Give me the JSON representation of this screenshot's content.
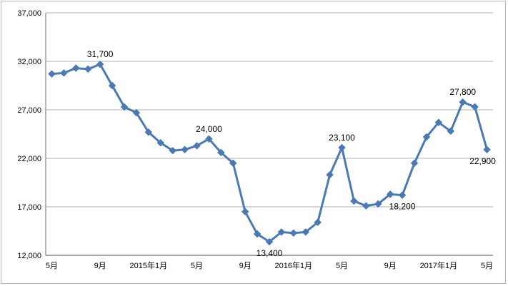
{
  "chart_data": {
    "type": "line",
    "title": "",
    "xlabel": "",
    "ylabel": "",
    "ylim": [
      12000,
      37000
    ],
    "yticks": [
      12000,
      17000,
      22000,
      27000,
      32000,
      37000
    ],
    "ytick_labels": [
      "12,000",
      "17,000",
      "22,000",
      "27,000",
      "32,000",
      "37,000"
    ],
    "grid": "horizontal",
    "legend": "none",
    "line_color": "#4a7ab3",
    "marker": "diamond",
    "x": [
      "2014-05",
      "2014-06",
      "2014-07",
      "2014-08",
      "2014-09",
      "2014-10",
      "2014-11",
      "2014-12",
      "2015-01",
      "2015-02",
      "2015-03",
      "2015-04",
      "2015-05",
      "2015-06",
      "2015-07",
      "2015-08",
      "2015-09",
      "2015-10",
      "2015-11",
      "2015-12",
      "2016-01",
      "2016-02",
      "2016-03",
      "2016-04",
      "2016-05",
      "2016-06",
      "2016-07",
      "2016-08",
      "2016-09",
      "2016-10",
      "2016-11",
      "2016-12",
      "2017-01",
      "2017-02",
      "2017-03",
      "2017-04",
      "2017-05"
    ],
    "x_tick_labels": [
      "5月",
      "",
      "",
      "",
      "9月",
      "",
      "",
      "",
      "2015年1月",
      "",
      "",
      "",
      "5月",
      "",
      "",
      "",
      "9月",
      "",
      "",
      "",
      "2016年1月",
      "",
      "",
      "",
      "5月",
      "",
      "",
      "",
      "9月",
      "",
      "",
      "",
      "2017年1月",
      "",
      "",
      "",
      "5月"
    ],
    "series": [
      {
        "values": [
          30700,
          30800,
          31300,
          31200,
          31700,
          29500,
          27300,
          26700,
          24700,
          23600,
          22800,
          22900,
          23300,
          24000,
          22600,
          21500,
          16500,
          14200,
          13400,
          14400,
          14300,
          14400,
          15400,
          20300,
          23100,
          17600,
          17100,
          17300,
          18300,
          18200,
          21500,
          24200,
          25700,
          24800,
          27800,
          27300,
          22900
        ]
      }
    ],
    "data_labels": [
      {
        "index": 4,
        "text": "31,700",
        "pos": "above"
      },
      {
        "index": 13,
        "text": "24,000",
        "pos": "above"
      },
      {
        "index": 18,
        "text": "13,400",
        "pos": "below"
      },
      {
        "index": 24,
        "text": "23,100",
        "pos": "above"
      },
      {
        "index": 29,
        "text": "18,200",
        "pos": "below"
      },
      {
        "index": 34,
        "text": "27,800",
        "pos": "above"
      },
      {
        "index": 36,
        "text": "22,900",
        "pos": "below"
      }
    ]
  }
}
